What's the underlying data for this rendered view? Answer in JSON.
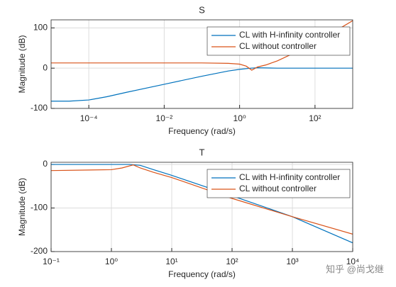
{
  "chart_data": [
    {
      "type": "line",
      "title": "S",
      "xlabel": "Frequency  (rad/s)",
      "ylabel": "Magnitude (dB)",
      "xscale": "log",
      "xlim": [
        1e-05,
        1000
      ],
      "ylim": [
        -100,
        120
      ],
      "xticks": [
        {
          "value": 0.0001,
          "label": "10⁻⁴"
        },
        {
          "value": 0.01,
          "label": "10⁻²"
        },
        {
          "value": 1,
          "label": "10⁰"
        },
        {
          "value": 100,
          "label": "10²"
        }
      ],
      "yticks": [
        -100,
        0,
        100
      ],
      "grid": true,
      "legend": "upper right",
      "series": [
        {
          "name": "CL with H-infinity controller",
          "color": "#0072BD",
          "x": [
            1e-05,
            3e-05,
            0.0001,
            0.0003,
            0.001,
            0.01,
            0.1,
            0.5,
            1,
            2,
            3,
            10,
            100,
            1000
          ],
          "values": [
            -82,
            -82,
            -79,
            -71,
            -60,
            -40,
            -20,
            -7,
            -3,
            0,
            1,
            0,
            0,
            0
          ]
        },
        {
          "name": "CL without controller",
          "color": "#D95319",
          "x": [
            1e-05,
            0.01,
            0.1,
            0.5,
            1,
            1.5,
            2.1,
            3,
            5,
            10,
            100,
            1000
          ],
          "values": [
            13,
            13,
            13,
            12,
            10,
            5,
            -5,
            3,
            8,
            18,
            62,
            118
          ]
        }
      ]
    },
    {
      "type": "line",
      "title": "T",
      "xlabel": "Frequency  (rad/s)",
      "ylabel": "Magnitude (dB)",
      "xscale": "log",
      "xlim": [
        0.1,
        10000
      ],
      "ylim": [
        -200,
        5
      ],
      "xticks": [
        {
          "value": 0.1,
          "label": "10⁻¹"
        },
        {
          "value": 1,
          "label": "10⁰"
        },
        {
          "value": 10,
          "label": "10¹"
        },
        {
          "value": 100,
          "label": "10²"
        },
        {
          "value": 1000,
          "label": "10³"
        },
        {
          "value": 10000,
          "label": "10⁴"
        }
      ],
      "yticks": [
        -200,
        -100,
        0
      ],
      "grid": true,
      "legend": "upper right",
      "series": [
        {
          "name": "CL with H-infinity controller",
          "color": "#0072BD",
          "x": [
            0.1,
            1,
            2,
            3,
            5,
            10,
            100,
            1000,
            10000
          ],
          "values": [
            0,
            0,
            0,
            -2,
            -12,
            -25,
            -72,
            -120,
            -180
          ]
        },
        {
          "name": "CL without controller",
          "color": "#D95319",
          "x": [
            0.1,
            1,
            1.5,
            2.3,
            3,
            5,
            10,
            100,
            1000,
            10000
          ],
          "values": [
            -14,
            -12,
            -8,
            -1,
            -8,
            -18,
            -30,
            -78,
            -120,
            -160
          ]
        }
      ]
    }
  ],
  "watermark": "知乎 @尚戈继"
}
